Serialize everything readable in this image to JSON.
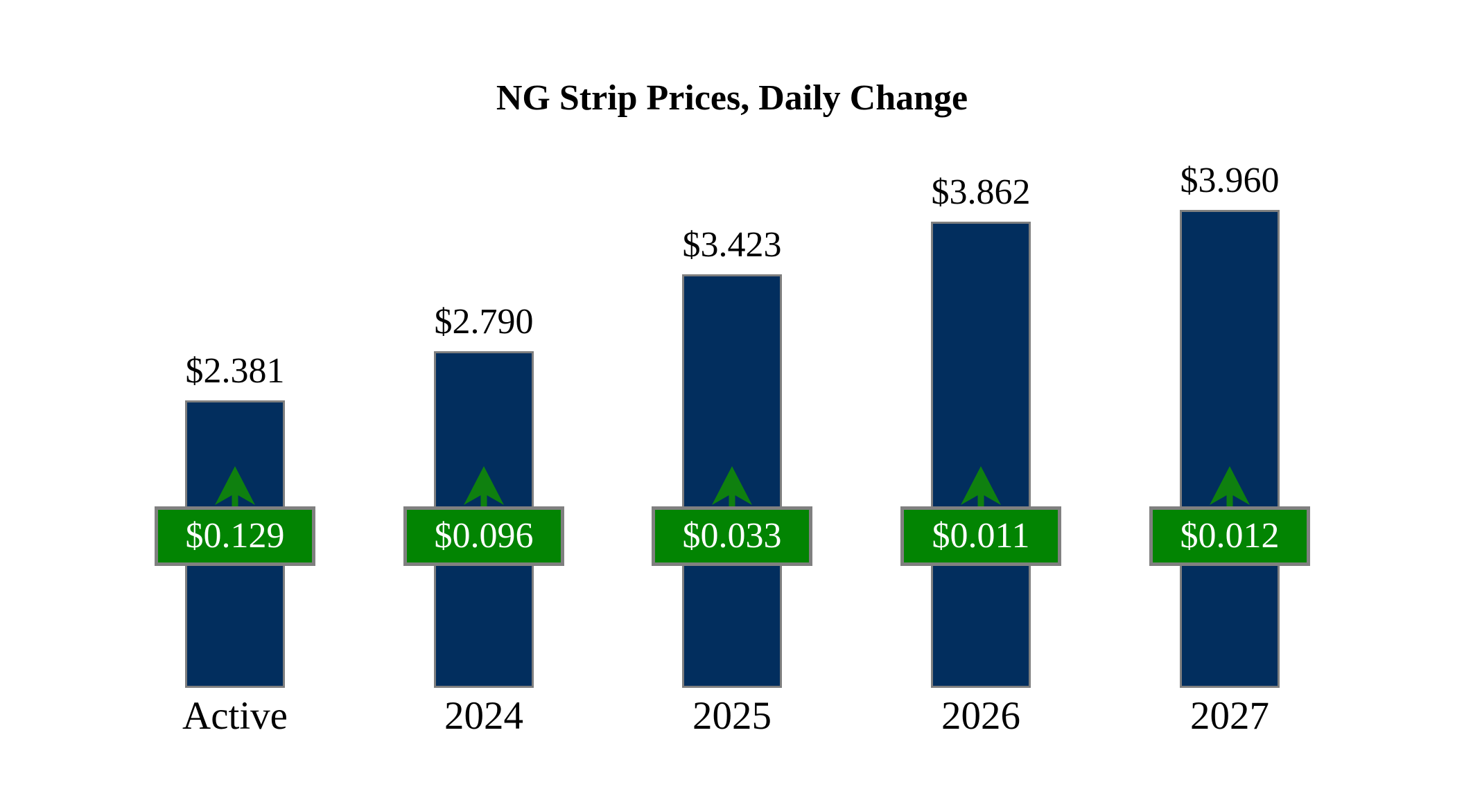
{
  "title": "NG Strip Prices, Daily Change",
  "colors": {
    "bar_fill": "#022E5E",
    "bar_border": "#7F7F7F",
    "badge_fill": "#028402",
    "badge_border": "#808080",
    "badge_text": "#FFFFFF",
    "arrow_green": "#0F800F",
    "label_text": "#000000",
    "background": "#FFFFFF"
  },
  "chart_data": {
    "type": "bar",
    "title": "NG Strip Prices, Daily Change",
    "categories": [
      "Active",
      "2024",
      "2025",
      "2026",
      "2027"
    ],
    "series": [
      {
        "name": "Strip Price",
        "values": [
          2.381,
          2.79,
          3.423,
          3.862,
          3.96
        ]
      },
      {
        "name": "Daily Change",
        "values": [
          0.129,
          0.096,
          0.033,
          0.011,
          0.012
        ]
      }
    ],
    "value_labels": [
      "$2.381",
      "$2.790",
      "$3.423",
      "$3.862",
      "$3.960"
    ],
    "change_labels": [
      "$0.129",
      "$0.096",
      "$0.033",
      "$0.011",
      "$0.012"
    ],
    "change_direction": [
      "up",
      "up",
      "up",
      "up",
      "up"
    ],
    "xlabel": "",
    "ylabel": "",
    "ylim": [
      0,
      4.2
    ],
    "grid": false,
    "legend": "none",
    "axis_lines": "none"
  }
}
